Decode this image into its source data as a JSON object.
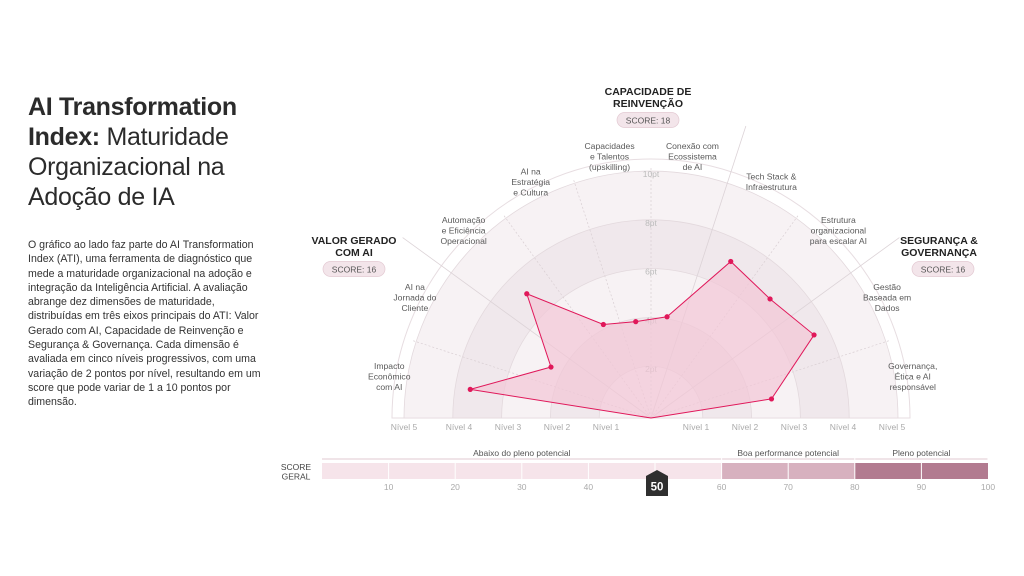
{
  "page": {
    "title_bold": "AI Transformation Index:",
    "title_rest": " Maturidade Organizacional na Adoção de IA",
    "description": "O gráfico ao lado faz parte do AI Transformation Index (ATI), uma ferramenta de diagnóstico que mede a maturidade organizacional na adoção e integração da Inteligência Artificial. A avaliação abrange dez dimensões de maturidade, distribuídas em três eixos principais do ATI: Valor Gerado com AI, Capacidade de Reinvenção e Segurança & Governança. Cada dimensão é avaliada em cinco níveis progressivos, com uma variação de 2 pontos por nível, resultando em um score que pode variar de 1 a 10 pontos por dimensão."
  },
  "chart_data": {
    "type": "radar",
    "rmax": 10,
    "radial_ticks": [
      "2pt",
      "4pt",
      "6pt",
      "8pt",
      "10pt"
    ],
    "axes": [
      {
        "label": "Impacto\nEconômico\ncom AI",
        "value": 7.5
      },
      {
        "label": "AI na\nJornada do\nCliente",
        "value": 4.6
      },
      {
        "label": "Automação\ne Eficiência\nOperacional",
        "value": 7.2
      },
      {
        "label": "AI na\nEstratégia\ne Cultura",
        "value": 4.3
      },
      {
        "label": "Capacidades\ne Talentos\n(upskilling)",
        "value": 4.0
      },
      {
        "label": "Conexão com\nEcossistema\nde AI",
        "value": 4.2
      },
      {
        "label": "Tech Stack &\nInfraestrutura",
        "value": 7.2
      },
      {
        "label": "Estrutura\norganizacional\npara escalar AI",
        "value": 6.9
      },
      {
        "label": "Gestão\nBaseada em\nDados",
        "value": 7.5
      },
      {
        "label": "Governança,\nÉtica e AI\nresponsável",
        "value": 5.0
      }
    ],
    "pillars": [
      {
        "name": "VALOR GERADO\nCOM AI",
        "score": "SCORE: 16"
      },
      {
        "name": "CAPACIDADE DE\nREINVENÇÃO",
        "score": "SCORE: 18"
      },
      {
        "name": "SEGURANÇA &\nGOVERNANÇA",
        "score": "SCORE: 16"
      }
    ],
    "levels_left": [
      "Nível 5",
      "Nível 4",
      "Nível 3",
      "Nível 2",
      "Nível 1"
    ],
    "levels_right": [
      "Nível 1",
      "Nível 2",
      "Nível 3",
      "Nível 4",
      "Nível 5"
    ],
    "colors": {
      "accent": "#e0185a",
      "fill": "#f2c6d6",
      "ring_light": "#f7f2f4",
      "ring_dark": "#f0e8ec",
      "band_light": "#f6e4ea",
      "band_mid": "#d7b1bf",
      "band_dark": "#b27b90"
    }
  },
  "score_bar": {
    "label": "SCORE\nGERAL",
    "value": 50,
    "value_label": "50",
    "max": 100,
    "ticks": [
      "10",
      "20",
      "30",
      "40",
      "50",
      "60",
      "70",
      "80",
      "90",
      "100"
    ],
    "segments": [
      {
        "label": "Abaixo do pleno potencial",
        "from": 0,
        "to": 60
      },
      {
        "label": "Boa performance potencial",
        "from": 60,
        "to": 80
      },
      {
        "label": "Pleno potencial",
        "from": 80,
        "to": 100
      }
    ]
  }
}
